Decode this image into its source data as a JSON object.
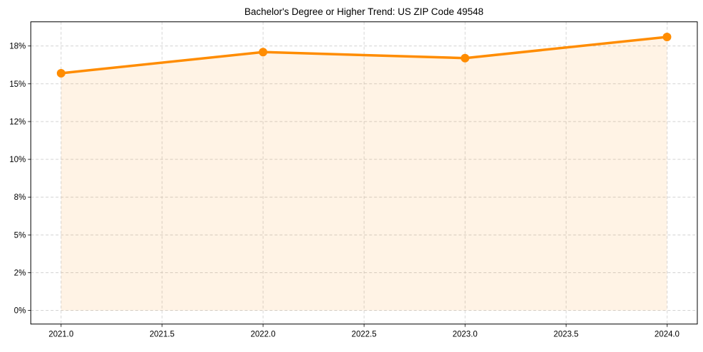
{
  "chart_data": {
    "type": "line",
    "title": "Bachelor's Degree or Higher Trend: US ZIP Code 49548",
    "xlabel": "",
    "ylabel": "",
    "x": [
      2021,
      2022,
      2023,
      2024
    ],
    "series": [
      {
        "name": "Bachelor's Degree or Higher",
        "values": [
          15.7,
          17.1,
          16.7,
          18.1
        ],
        "color": "#FF8C00",
        "fill_color": "#FF8C00",
        "fill_opacity": 0.1,
        "marker": "circle"
      }
    ],
    "xlim": [
      2020.85,
      2024.15
    ],
    "ylim": [
      -0.9,
      19.1
    ],
    "x_ticks": [
      2021.0,
      2021.5,
      2022.0,
      2022.5,
      2023.0,
      2023.5,
      2024.0
    ],
    "x_tick_labels": [
      "2021.0",
      "2021.5",
      "2022.0",
      "2022.5",
      "2023.0",
      "2023.5",
      "2024.0"
    ],
    "y_ticks": [
      0,
      2.5,
      5,
      7.5,
      10,
      12.5,
      15,
      17.5
    ],
    "y_tick_labels": [
      "0%",
      "2%",
      "5%",
      "8%",
      "10%",
      "12%",
      "15%",
      "18%"
    ],
    "grid": true,
    "grid_style": "dashed",
    "legend": null
  }
}
